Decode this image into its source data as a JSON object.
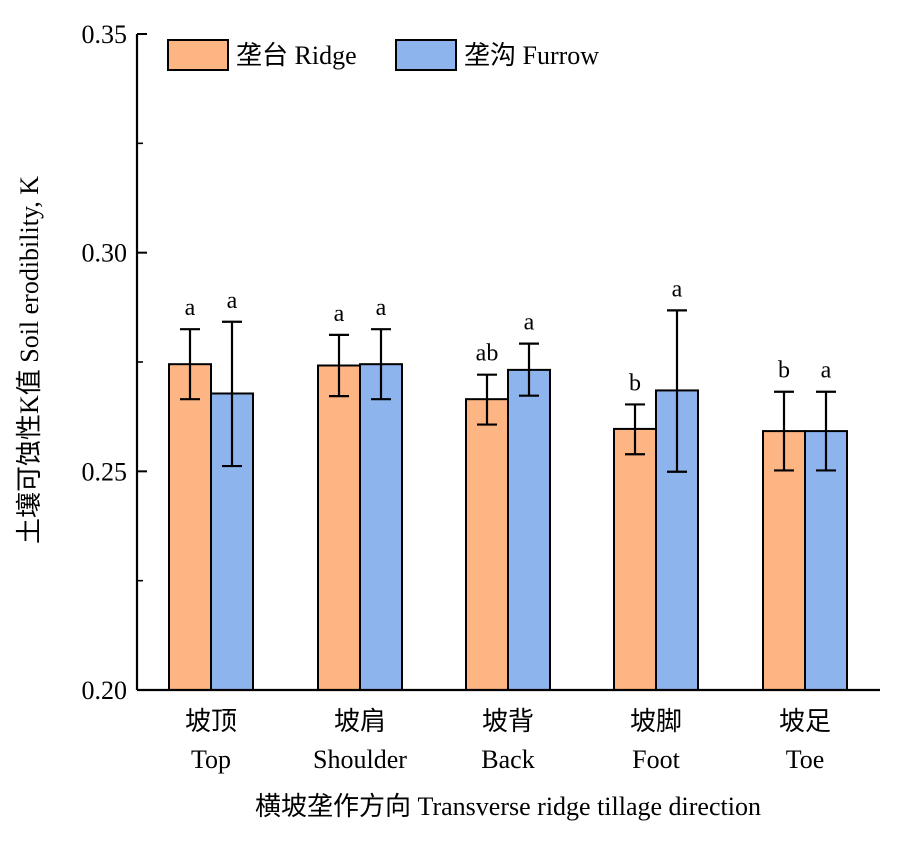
{
  "chart_data": {
    "type": "bar",
    "categories": [
      {
        "zh": "坡顶",
        "en": "Top"
      },
      {
        "zh": "坡肩",
        "en": "Shoulder"
      },
      {
        "zh": "坡背",
        "en": "Back"
      },
      {
        "zh": "坡脚",
        "en": "Foot"
      },
      {
        "zh": "坡足",
        "en": "Toe"
      }
    ],
    "series": [
      {
        "name": "垄台 Ridge",
        "color": "#FDB583",
        "values": [
          0.2745,
          0.2742,
          0.2665,
          0.2597,
          0.2592
        ],
        "error_low": [
          0.2665,
          0.2672,
          0.2607,
          0.2539,
          0.2502
        ],
        "error_high": [
          0.2825,
          0.2812,
          0.2721,
          0.2653,
          0.2682
        ],
        "significance": [
          "a",
          "a",
          "ab",
          "b",
          "b"
        ]
      },
      {
        "name": "垄沟 Furrow",
        "color": "#8EB4EE",
        "values": [
          0.2678,
          0.2745,
          0.2732,
          0.2685,
          0.2592
        ],
        "error_low": [
          0.2512,
          0.2665,
          0.2673,
          0.2499,
          0.2502
        ],
        "error_high": [
          0.2842,
          0.2825,
          0.2792,
          0.2868,
          0.2682
        ],
        "significance": [
          "a",
          "a",
          "a",
          "a",
          "a"
        ]
      }
    ],
    "xlabel": "横坡垄作方向 Transverse ridge tillage direction",
    "ylabel": "土壤可蚀性K值 Soil erodibility, K",
    "ylim": [
      0.2,
      0.35
    ],
    "yticks": [
      "0.20",
      "0.25",
      "0.30",
      "0.35"
    ],
    "legend": "top-left",
    "grid": false
  }
}
